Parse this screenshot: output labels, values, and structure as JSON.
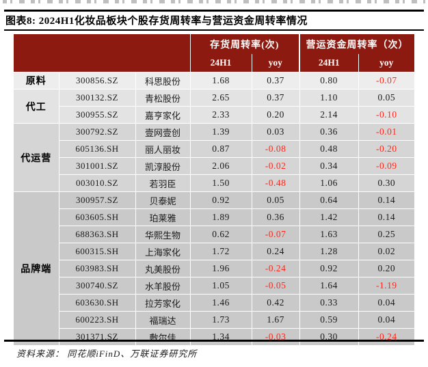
{
  "title": "图表8: 2024H1化妆品板块个股存货周转率与营运资金周转率情况",
  "source": "资料来源： 同花顺iFinD、万联证券研究所",
  "colors": {
    "header_bg": "#8C1A10",
    "negative_text": "#FF2619",
    "group_shades": [
      "#EDEDED",
      "#E3E3E3",
      "#D5D5D5",
      "#C9C9C9"
    ]
  },
  "table": {
    "col_groups": [
      {
        "label": "存货周转率(次)"
      },
      {
        "label": "营运资金周转率（次）"
      }
    ],
    "sub_headers": [
      "24H1",
      "yoy",
      "24H1",
      "yoy"
    ],
    "groups": [
      {
        "label": "原料",
        "rows": [
          {
            "code": "300856.SZ",
            "name": "科思股份",
            "inv_24h1": "1.68",
            "inv_yoy": "0.37",
            "wc_24h1": "0.80",
            "wc_yoy": "-0.07"
          }
        ]
      },
      {
        "label": "代工",
        "rows": [
          {
            "code": "300132.SZ",
            "name": "青松股份",
            "inv_24h1": "2.65",
            "inv_yoy": "0.37",
            "wc_24h1": "1.10",
            "wc_yoy": "0.05"
          },
          {
            "code": "300955.SZ",
            "name": "嘉亨家化",
            "inv_24h1": "2.33",
            "inv_yoy": "0.20",
            "wc_24h1": "2.14",
            "wc_yoy": "-0.10"
          }
        ]
      },
      {
        "label": "代运营",
        "rows": [
          {
            "code": "300792.SZ",
            "name": "壹网壹创",
            "inv_24h1": "1.39",
            "inv_yoy": "0.03",
            "wc_24h1": "0.36",
            "wc_yoy": "-0.01"
          },
          {
            "code": "605136.SH",
            "name": "丽人丽妆",
            "inv_24h1": "0.87",
            "inv_yoy": "-0.08",
            "wc_24h1": "0.48",
            "wc_yoy": "-0.20"
          },
          {
            "code": "301001.SZ",
            "name": "凯淳股份",
            "inv_24h1": "2.06",
            "inv_yoy": "-0.02",
            "wc_24h1": "0.34",
            "wc_yoy": "-0.09"
          },
          {
            "code": "003010.SZ",
            "name": "若羽臣",
            "inv_24h1": "1.50",
            "inv_yoy": "-0.48",
            "wc_24h1": "1.06",
            "wc_yoy": "0.30"
          }
        ]
      },
      {
        "label": "品牌端",
        "rows": [
          {
            "code": "300957.SZ",
            "name": "贝泰妮",
            "inv_24h1": "0.92",
            "inv_yoy": "0.05",
            "wc_24h1": "0.64",
            "wc_yoy": "0.14"
          },
          {
            "code": "603605.SH",
            "name": "珀莱雅",
            "inv_24h1": "1.89",
            "inv_yoy": "0.36",
            "wc_24h1": "1.42",
            "wc_yoy": "0.14"
          },
          {
            "code": "688363.SH",
            "name": "华熙生物",
            "inv_24h1": "0.62",
            "inv_yoy": "-0.07",
            "wc_24h1": "1.63",
            "wc_yoy": "0.25"
          },
          {
            "code": "600315.SH",
            "name": "上海家化",
            "inv_24h1": "1.72",
            "inv_yoy": "0.24",
            "wc_24h1": "1.28",
            "wc_yoy": "0.02"
          },
          {
            "code": "603983.SH",
            "name": "丸美股份",
            "inv_24h1": "1.96",
            "inv_yoy": "-0.24",
            "wc_24h1": "0.92",
            "wc_yoy": "0.20"
          },
          {
            "code": "300740.SZ",
            "name": "水羊股份",
            "inv_24h1": "1.05",
            "inv_yoy": "-0.05",
            "wc_24h1": "1.64",
            "wc_yoy": "-1.19"
          },
          {
            "code": "603630.SH",
            "name": "拉芳家化",
            "inv_24h1": "1.46",
            "inv_yoy": "0.42",
            "wc_24h1": "0.33",
            "wc_yoy": "0.04"
          },
          {
            "code": "600223.SH",
            "name": "福瑞达",
            "inv_24h1": "1.73",
            "inv_yoy": "1.67",
            "wc_24h1": "0.59",
            "wc_yoy": "0.04"
          },
          {
            "code": "301371.SZ",
            "name": "敷尔佳",
            "inv_24h1": "1.34",
            "inv_yoy": "-0.03",
            "wc_24h1": "0.30",
            "wc_yoy": "-0.24"
          }
        ]
      }
    ]
  }
}
